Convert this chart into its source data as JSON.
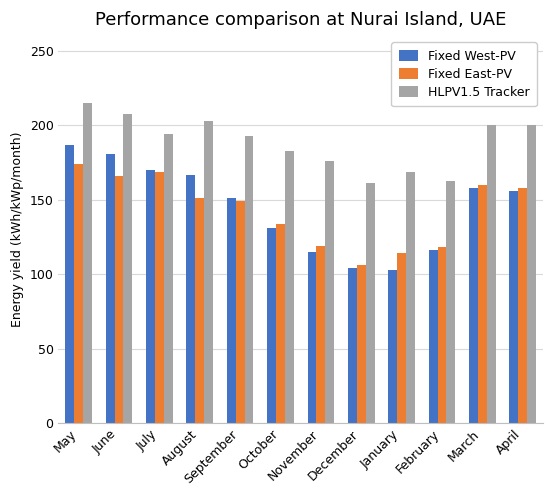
{
  "title": "Performance comparison at Nurai Island, UAE",
  "ylabel": "Energy yield (kWh/kWp/month)",
  "months": [
    "May",
    "June",
    "July",
    "August",
    "September",
    "October",
    "November",
    "December",
    "January",
    "February",
    "March",
    "April"
  ],
  "series": {
    "Fixed West-PV": [
      187,
      181,
      170,
      167,
      151,
      131,
      115,
      104,
      103,
      116,
      158,
      156
    ],
    "Fixed East-PV": [
      174,
      166,
      169,
      151,
      149,
      134,
      119,
      106,
      114,
      118,
      160,
      158
    ],
    "HLPV1.5 Tracker": [
      215,
      208,
      194,
      203,
      193,
      183,
      176,
      161,
      169,
      163,
      200,
      200
    ]
  },
  "colors": {
    "Fixed West-PV": "#4472C4",
    "Fixed East-PV": "#ED7D31",
    "HLPV1.5 Tracker": "#A5A5A5"
  },
  "ylim": [
    0,
    260
  ],
  "yticks": [
    0,
    50,
    100,
    150,
    200,
    250
  ],
  "bar_width": 0.22,
  "background_color": "#FFFFFF",
  "plot_bg_color": "#F2F2F2",
  "title_fontsize": 13,
  "label_fontsize": 9,
  "tick_fontsize": 9,
  "legend_fontsize": 9
}
